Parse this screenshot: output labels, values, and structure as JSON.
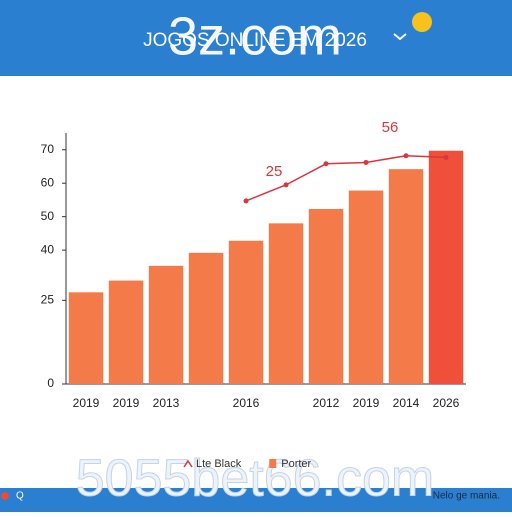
{
  "header": {
    "title": "JOGOS ONLINE EM 2026",
    "logo": "3z.com"
  },
  "footer": {
    "banner": "5055bet66.com",
    "note": "Nelo ge mania.",
    "icon_label": "Q"
  },
  "chart_data": {
    "type": "bar",
    "categories": [
      "2019",
      "2019",
      "2013",
      null,
      "2016",
      null,
      "2012",
      "2019",
      "2014",
      "2026"
    ],
    "series": [
      {
        "name": "Porter",
        "type": "bar",
        "color": "#f47a4a",
        "highlight_color": "#f0503a",
        "values": [
          27.4,
          30.9,
          35.3,
          39.2,
          42.8,
          48,
          52.3,
          57.8,
          64.2,
          69.7
        ]
      },
      {
        "name": "Lte Black",
        "type": "line",
        "color": "#d9363e",
        "values": [
          null,
          null,
          null,
          null,
          54.7,
          59.5,
          65.8,
          66.2,
          68.2,
          67.7
        ]
      }
    ],
    "annotations": [
      {
        "text": "25"
      },
      {
        "text": "56"
      }
    ],
    "ylim": [
      0,
      75
    ],
    "yticks": [
      0,
      25,
      40,
      50,
      60,
      70
    ],
    "grid": false
  }
}
